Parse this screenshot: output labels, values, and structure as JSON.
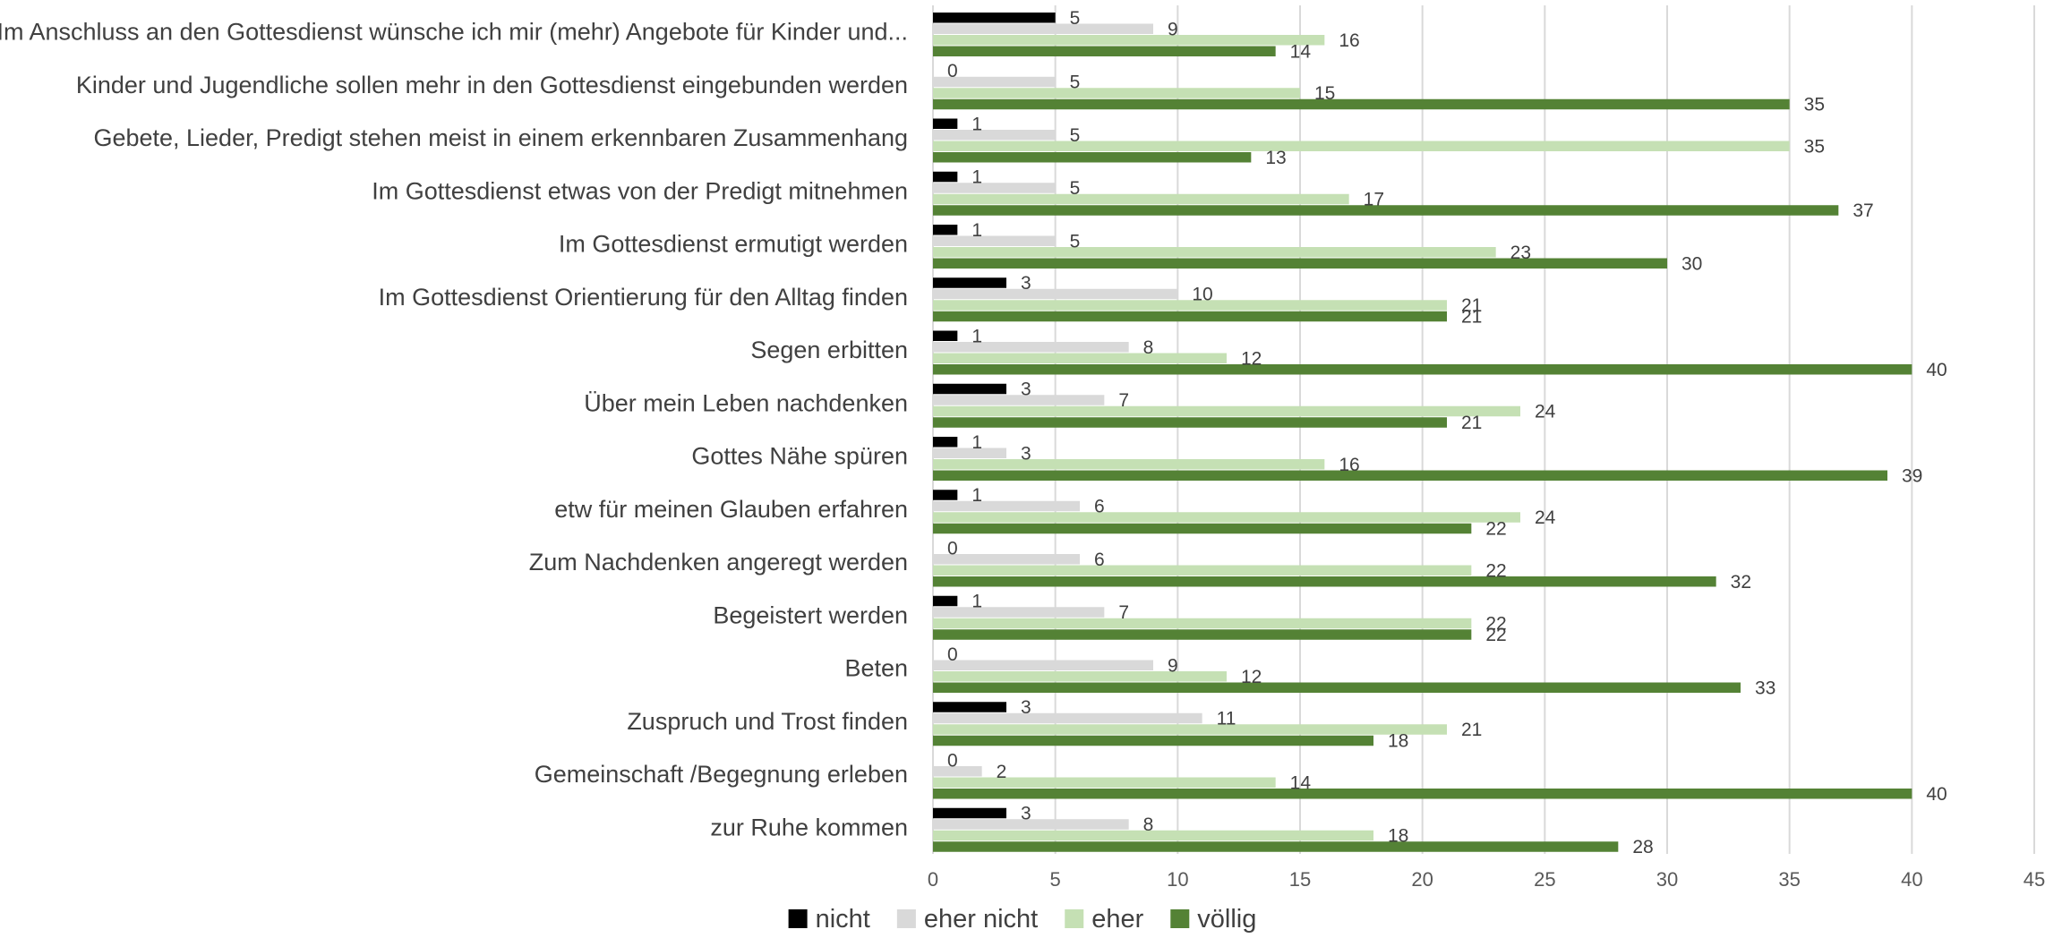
{
  "chart_data": {
    "type": "bar",
    "orientation": "horizontal",
    "title": "",
    "xlabel": "",
    "ylabel": "",
    "xlim": [
      0,
      45
    ],
    "xticks": [
      0,
      5,
      10,
      15,
      20,
      25,
      30,
      35,
      40,
      45
    ],
    "grid": true,
    "legend_position": "bottom",
    "categories": [
      "Im Anschluss an den Gottesdienst wünsche ich mir (mehr) Angebote für Kinder und...",
      "Kinder und Jugendliche sollen mehr in den Gottesdienst eingebunden werden",
      "Gebete, Lieder, Predigt stehen meist in einem erkennbaren Zusammenhang",
      "Im Gottesdienst etwas von der Predigt mitnehmen",
      "Im Gottesdienst ermutigt werden",
      "Im Gottesdienst Orientierung für den  Alltag finden",
      "Segen erbitten",
      "Über mein Leben nachdenken",
      "Gottes Nähe spüren",
      "etw für meinen Glauben erfahren",
      "Zum Nachdenken angeregt werden",
      "Begeistert werden",
      "Beten",
      "Zuspruch und Trost finden",
      "Gemeinschaft /Begegnung erleben",
      "zur Ruhe kommen"
    ],
    "series": [
      {
        "name": "nicht",
        "color": "#000000",
        "values": [
          5,
          0,
          1,
          1,
          1,
          3,
          1,
          3,
          1,
          1,
          0,
          1,
          0,
          3,
          0,
          3
        ]
      },
      {
        "name": "eher nicht",
        "color": "#d9d9d9",
        "values": [
          9,
          5,
          5,
          5,
          5,
          10,
          8,
          7,
          3,
          6,
          6,
          7,
          9,
          11,
          2,
          8
        ]
      },
      {
        "name": "eher",
        "color": "#c5e0b4",
        "values": [
          16,
          15,
          35,
          17,
          23,
          21,
          12,
          24,
          16,
          24,
          22,
          22,
          12,
          21,
          14,
          18
        ]
      },
      {
        "name": "völlig",
        "color": "#548235",
        "values": [
          14,
          35,
          13,
          37,
          30,
          21,
          40,
          21,
          39,
          22,
          32,
          22,
          33,
          18,
          40,
          28
        ]
      }
    ]
  }
}
